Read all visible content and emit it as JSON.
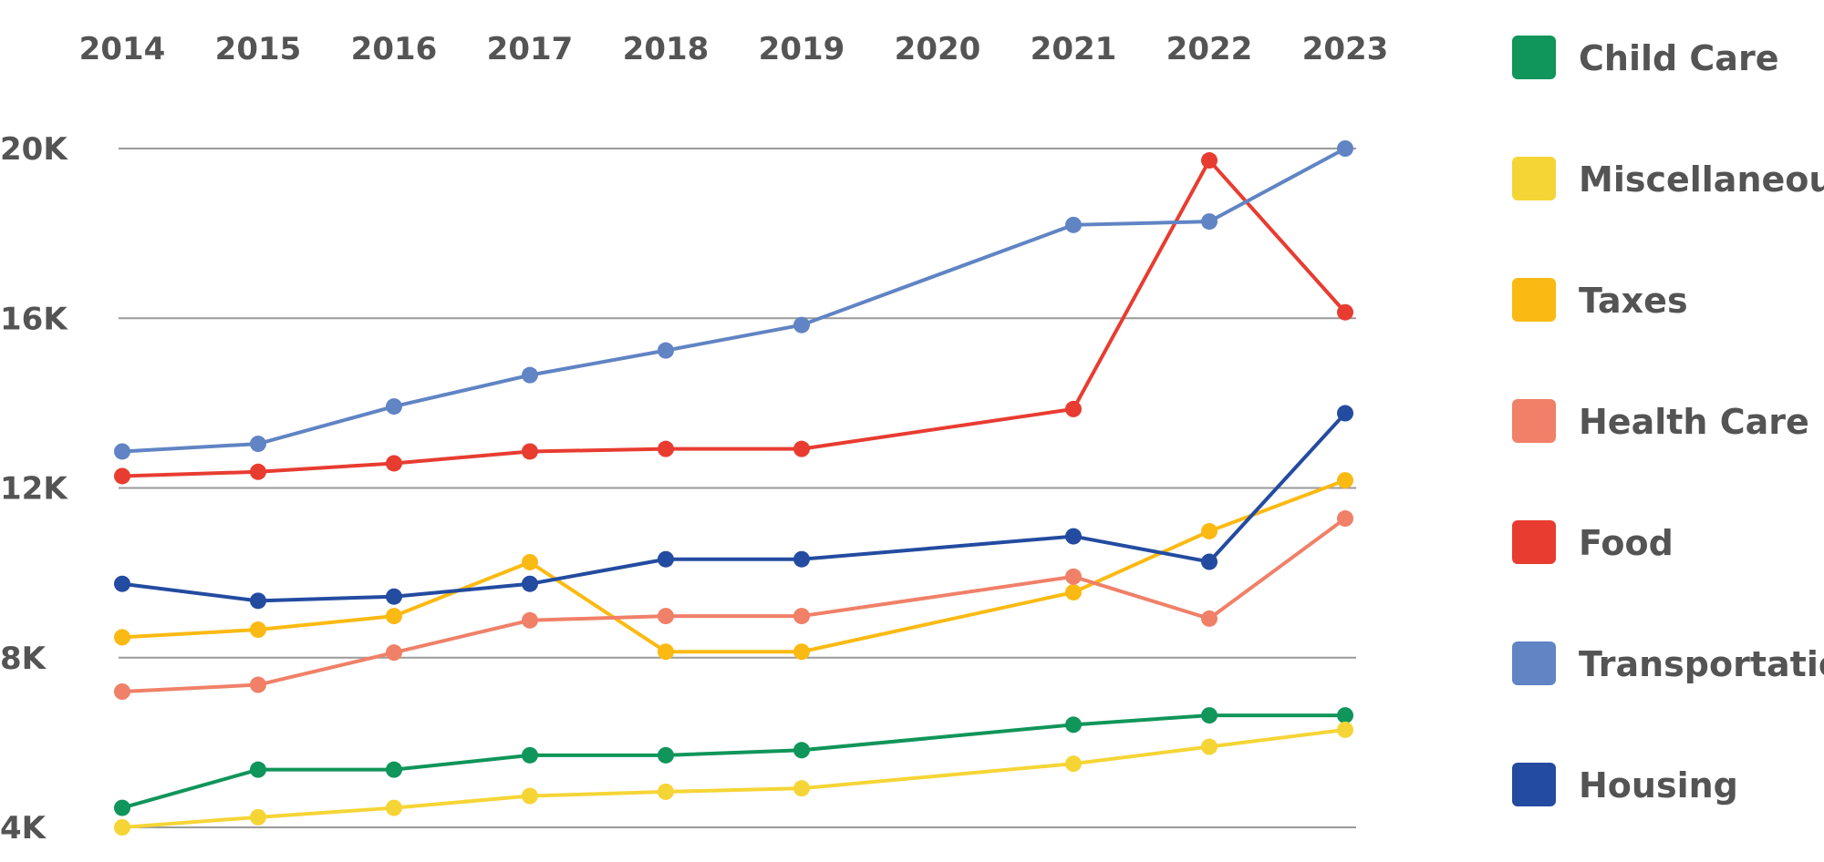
{
  "chart_data": {
    "type": "line",
    "categories": [
      "2014",
      "2015",
      "2016",
      "2017",
      "2018",
      "2019",
      "2020",
      "2021",
      "2022",
      "2023"
    ],
    "x_tick_labels": [
      "2014",
      "2015",
      "2016",
      "2017",
      "2018",
      "2019",
      "2020",
      "2021",
      "2022",
      "2023"
    ],
    "x_axis_position": "top",
    "y_tick_labels": [
      "4K",
      "8K",
      "12K",
      "16K",
      "20K"
    ],
    "y_ticks": [
      4000,
      8000,
      12000,
      16000,
      20000
    ],
    "ylim": [
      4000,
      20000
    ],
    "grid": "horizontal",
    "legend_position": "right",
    "series": [
      {
        "name": "Child Care",
        "color": "#10955a",
        "x": [
          "2014",
          "2015",
          "2016",
          "2017",
          "2018",
          "2019",
          "2021",
          "2022",
          "2023"
        ],
        "values": [
          4460,
          5360,
          5360,
          5700,
          5700,
          5820,
          6420,
          6640,
          6640
        ]
      },
      {
        "name": "Miscellaneous",
        "color": "#f5d536",
        "x": [
          "2014",
          "2015",
          "2016",
          "2017",
          "2018",
          "2019",
          "2021",
          "2022",
          "2023"
        ],
        "values": [
          4000,
          4240,
          4460,
          4740,
          4840,
          4920,
          5500,
          5900,
          6300
        ]
      },
      {
        "name": "Taxes",
        "color": "#fbba13",
        "x": [
          "2014",
          "2015",
          "2016",
          "2017",
          "2018",
          "2019",
          "2021",
          "2022",
          "2023"
        ],
        "values": [
          8480,
          8660,
          8980,
          10250,
          8140,
          8140,
          9540,
          10980,
          12180
        ]
      },
      {
        "name": "Health Care",
        "color": "#f08068",
        "x": [
          "2014",
          "2015",
          "2016",
          "2017",
          "2018",
          "2019",
          "2021",
          "2022",
          "2023"
        ],
        "values": [
          7200,
          7360,
          8120,
          8880,
          8980,
          8980,
          9910,
          8920,
          11280
        ]
      },
      {
        "name": "Food",
        "color": "#e83c31",
        "x": [
          "2014",
          "2015",
          "2016",
          "2017",
          "2018",
          "2019",
          "2021",
          "2022",
          "2023"
        ],
        "values": [
          12280,
          12380,
          12580,
          12860,
          12920,
          12920,
          13860,
          19720,
          16140
        ]
      },
      {
        "name": "Transportation",
        "color": "#6084c4",
        "x": [
          "2014",
          "2015",
          "2016",
          "2017",
          "2018",
          "2019",
          "2021",
          "2022",
          "2023"
        ],
        "values": [
          12860,
          13040,
          13920,
          14660,
          15240,
          15840,
          18200,
          18280,
          20000
        ]
      },
      {
        "name": "Housing",
        "color": "#234ba0",
        "x": [
          "2014",
          "2015",
          "2016",
          "2017",
          "2018",
          "2019",
          "2021",
          "2022",
          "2023"
        ],
        "values": [
          9740,
          9340,
          9440,
          9740,
          10320,
          10320,
          10860,
          10260,
          13760
        ]
      }
    ]
  }
}
